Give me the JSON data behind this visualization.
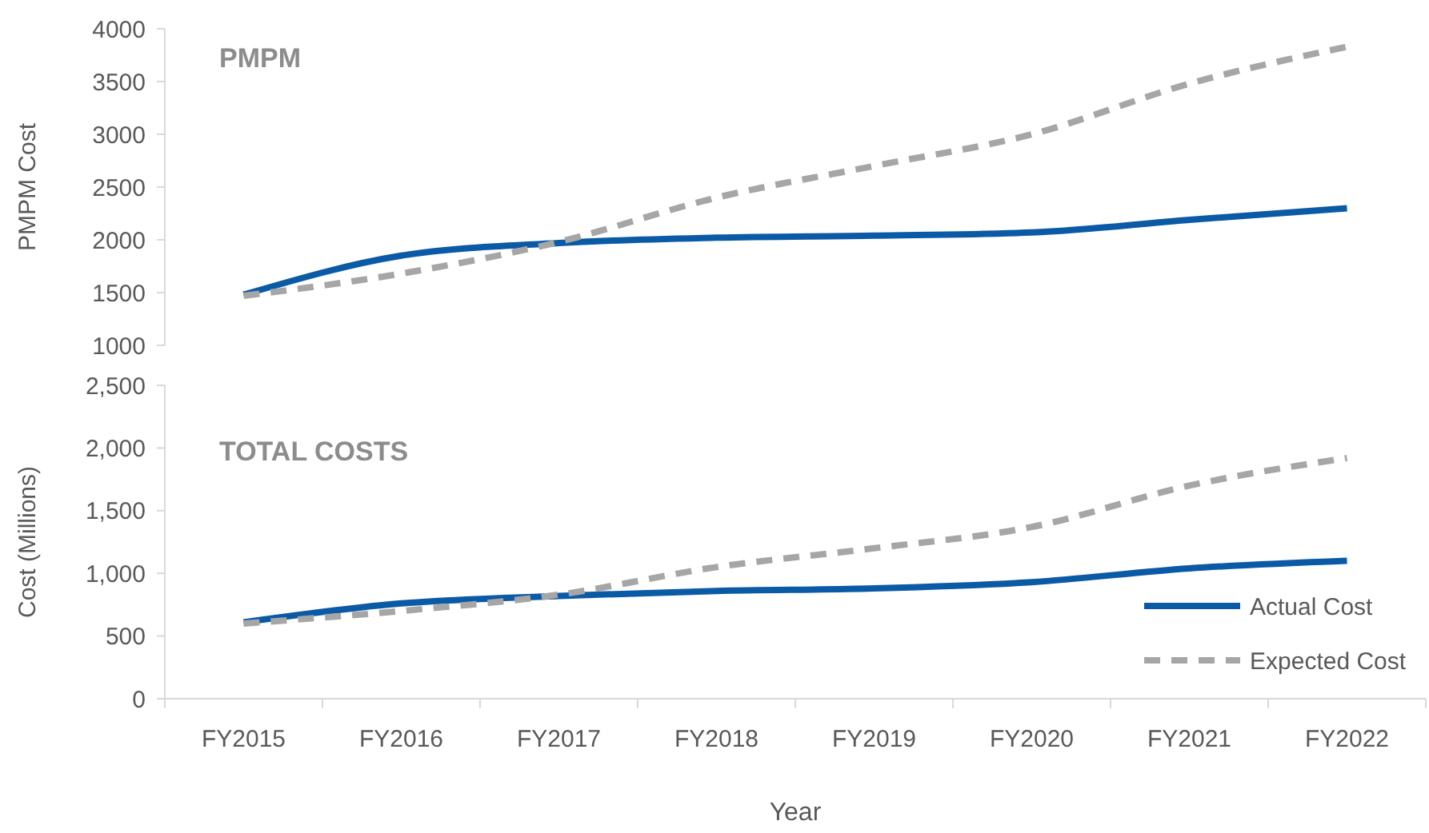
{
  "chart_data": [
    {
      "type": "line",
      "title": "PMPM",
      "ylabel": "PMPM Cost",
      "categories": [
        "FY2015",
        "FY2016",
        "FY2017",
        "FY2018",
        "FY2019",
        "FY2020",
        "FY2021",
        "FY2022"
      ],
      "ylim": [
        1000,
        4000
      ],
      "yticks": [
        1000,
        1500,
        2000,
        2500,
        3000,
        3500,
        4000
      ],
      "tick_labels": "y",
      "legend": false,
      "series": [
        {
          "color": "#0b5aa6",
          "line_style": "solid",
          "values": [
            1480,
            1850,
            1970,
            2020,
            2040,
            2070,
            2190,
            2300
          ]
        },
        {
          "color": "#a6a6a6",
          "line_style": "dashed",
          "values": [
            1470,
            1680,
            1980,
            2400,
            2700,
            3000,
            3480,
            3830
          ]
        }
      ]
    },
    {
      "type": "line",
      "title": "TOTAL COSTS",
      "ylabel": "Cost (Millions)",
      "xlabel": "Year",
      "categories": [
        "FY2015",
        "FY2016",
        "FY2017",
        "FY2018",
        "FY2019",
        "FY2020",
        "FY2021",
        "FY2022"
      ],
      "ylim": [
        0,
        2500
      ],
      "yticks": [
        0,
        500,
        {
          "value": 1000,
          "label": "1,000"
        },
        {
          "value": 1500,
          "label": "1,500"
        },
        {
          "value": 2000,
          "label": "2,000"
        },
        {
          "value": 2500,
          "label": "2,500"
        }
      ],
      "legend": "bottom right",
      "series": [
        {
          "name": "Actual Cost",
          "color": "#0b5aa6",
          "line_style": "solid",
          "values": [
            610,
            760,
            820,
            860,
            880,
            930,
            1040,
            1100
          ]
        },
        {
          "name": "Expected Cost",
          "color": "#a6a6a6",
          "line_style": "dashed",
          "values": [
            600,
            700,
            830,
            1050,
            1200,
            1370,
            1700,
            1920
          ]
        }
      ]
    }
  ]
}
